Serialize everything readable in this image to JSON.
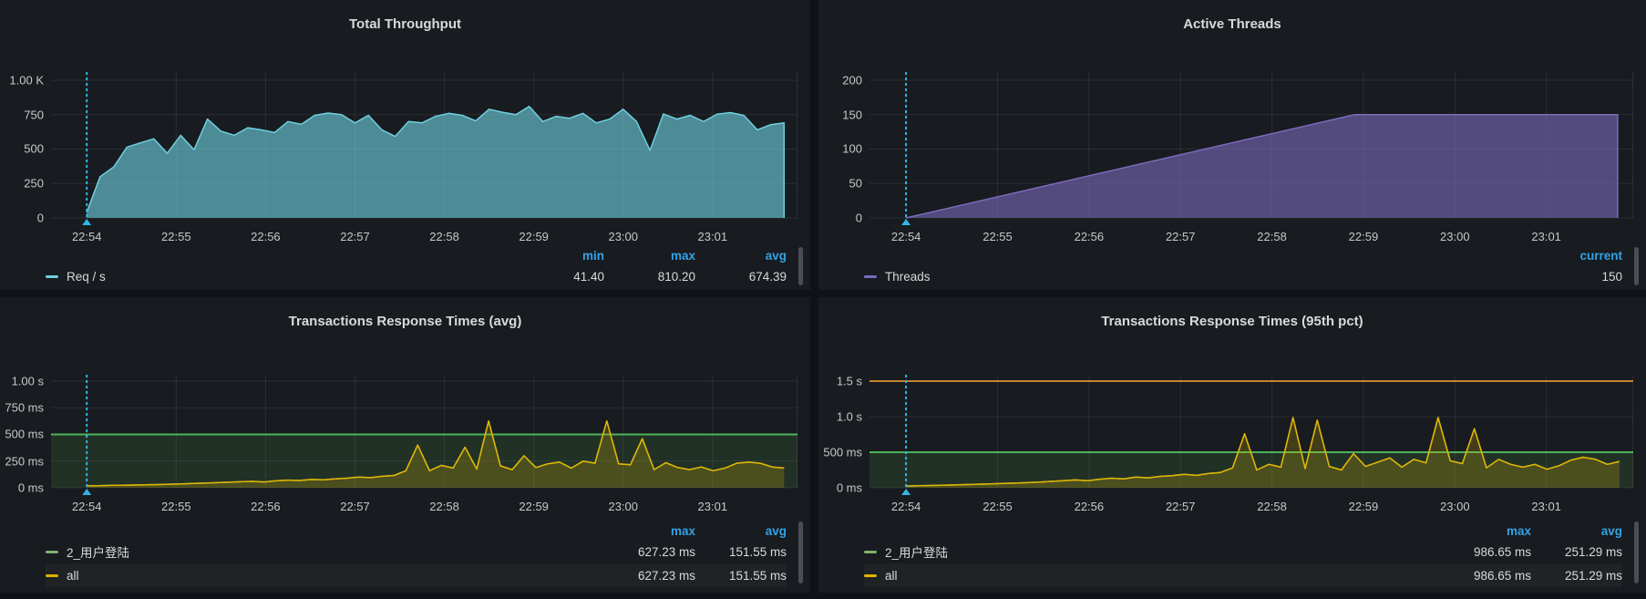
{
  "colors": {
    "page_bg": "#111217",
    "panel_bg": "#181b1f",
    "grid": "rgba(204,204,220,0.10)",
    "legend_header_blue": "#33a2e5",
    "teal": "#6ed0e0",
    "purple": "#7c6bbd",
    "green": "#7eb26d",
    "yellow": "#e0b400",
    "threshold_green": "#4eb358",
    "threshold_orange": "#c4822d",
    "annotation_cyan": "#33b5e5"
  },
  "panels": [
    {
      "title": "Total Throughput",
      "chart_index": 0,
      "legend": {
        "columns": [
          "min",
          "max",
          "avg"
        ],
        "rows": [
          {
            "label": "Req / s",
            "color": "#6ed0e0",
            "values": [
              "41.40",
              "810.20",
              "674.39"
            ]
          }
        ]
      }
    },
    {
      "title": "Active Threads",
      "chart_index": 1,
      "legend": {
        "columns": [
          "current"
        ],
        "rows": [
          {
            "label": "Threads",
            "color": "#7c6bbd",
            "values": [
              "150"
            ]
          }
        ]
      }
    },
    {
      "title": "Transactions Response Times (avg)",
      "chart_index": 2,
      "legend": {
        "columns": [
          "max",
          "avg"
        ],
        "rows": [
          {
            "label": "2_用户登陆",
            "color": "#7eb26d",
            "values": [
              "627.23 ms",
              "151.55 ms"
            ]
          },
          {
            "label": "all",
            "color": "#e0b400",
            "values": [
              "627.23 ms",
              "151.55 ms"
            ]
          }
        ]
      }
    },
    {
      "title": "Transactions Response Times (95th pct)",
      "chart_index": 3,
      "legend": {
        "columns": [
          "max",
          "avg"
        ],
        "rows": [
          {
            "label": "2_用户登陆",
            "color": "#7eb26d",
            "values": [
              "986.65 ms",
              "251.29 ms"
            ]
          },
          {
            "label": "all",
            "color": "#e0b400",
            "values": [
              "986.65 ms",
              "251.29 ms"
            ]
          }
        ]
      }
    }
  ],
  "chart_data": [
    {
      "type": "area",
      "title": "Total Throughput",
      "x_ticks": [
        "22:54",
        "22:55",
        "22:56",
        "22:57",
        "22:58",
        "22:59",
        "23:00",
        "23:01"
      ],
      "x_domain_minutes": [
        -0.4,
        7.95
      ],
      "ylim": [
        0,
        1060
      ],
      "y_ticks": [
        {
          "v": 0,
          "label": "0"
        },
        {
          "v": 250,
          "label": "250"
        },
        {
          "v": 500,
          "label": "500"
        },
        {
          "v": 750,
          "label": "750"
        },
        {
          "v": 1000,
          "label": "1.00 K"
        }
      ],
      "annotation": {
        "t": 0,
        "color": "#33b5e5"
      },
      "thresholds": [],
      "series": [
        {
          "name": "Req / s",
          "color": "#6ed0e0",
          "fill_opacity": 0.62,
          "close_stroke": true,
          "t_start": 0,
          "t_end": 7.8,
          "values": [
            41,
            300,
            370,
            515,
            545,
            575,
            470,
            600,
            495,
            718,
            630,
            600,
            655,
            640,
            620,
            700,
            680,
            745,
            762,
            750,
            690,
            745,
            640,
            592,
            700,
            690,
            738,
            760,
            745,
            705,
            790,
            768,
            750,
            810,
            700,
            738,
            724,
            760,
            690,
            718,
            790,
            700,
            491,
            755,
            718,
            745,
            700,
            753,
            765,
            745,
            640,
            678,
            690
          ],
          "stats": {
            "min": 41.4,
            "max": 810.2,
            "avg": 674.39
          }
        }
      ]
    },
    {
      "type": "area",
      "title": "Active Threads",
      "x_ticks": [
        "22:54",
        "22:55",
        "22:56",
        "22:57",
        "22:58",
        "22:59",
        "23:00",
        "23:01"
      ],
      "x_domain_minutes": [
        -0.4,
        7.95
      ],
      "ylim": [
        0,
        212
      ],
      "y_ticks": [
        {
          "v": 0,
          "label": "0"
        },
        {
          "v": 50,
          "label": "50"
        },
        {
          "v": 100,
          "label": "100"
        },
        {
          "v": 150,
          "label": "150"
        },
        {
          "v": 200,
          "label": "200"
        }
      ],
      "annotation": {
        "t": 0,
        "color": "#33b5e5"
      },
      "thresholds": [],
      "series": [
        {
          "name": "Threads",
          "color": "#7c6bbd",
          "fill_opacity": 0.6,
          "close_stroke": true,
          "points": [
            [
              0,
              0
            ],
            [
              4.9,
              150
            ],
            [
              7.78,
              150
            ]
          ],
          "stats": {
            "current": 150
          }
        }
      ]
    },
    {
      "type": "line",
      "title": "Transactions Response Times (avg)",
      "x_ticks": [
        "22:54",
        "22:55",
        "22:56",
        "22:57",
        "22:58",
        "22:59",
        "23:00",
        "23:01"
      ],
      "x_domain_minutes": [
        -0.4,
        7.95
      ],
      "ylim": [
        0,
        1060
      ],
      "y_ticks": [
        {
          "v": 0,
          "label": "0 ms"
        },
        {
          "v": 250,
          "label": "250 ms"
        },
        {
          "v": 500,
          "label": "500 ms"
        },
        {
          "v": 750,
          "label": "750 ms"
        },
        {
          "v": 1000,
          "label": "1.00 s"
        }
      ],
      "annotation": {
        "t": 0,
        "color": "#33b5e5"
      },
      "thresholds": [
        {
          "value": 500,
          "color": "#4eb358",
          "region_fill": "rgba(86,166,75,0.16)"
        }
      ],
      "series": [
        {
          "name": "2_用户登陆",
          "color": "#7eb26d",
          "fill_opacity": 0,
          "close_stroke": false,
          "t_start": 0,
          "t_end": 7.8,
          "values": [
            18,
            20,
            22,
            24,
            26,
            28,
            30,
            33,
            36,
            40,
            44,
            48,
            52,
            56,
            60,
            55,
            65,
            72,
            68,
            78,
            74,
            84,
            90,
            100,
            95,
            108,
            115,
            160,
            400,
            160,
            210,
            185,
            380,
            175,
            627,
            205,
            170,
            300,
            190,
            225,
            240,
            185,
            250,
            230,
            627,
            225,
            215,
            460,
            170,
            235,
            190,
            170,
            195,
            160,
            185,
            230,
            240,
            230,
            195,
            185
          ],
          "stats": {
            "max": 627.23,
            "avg": 151.55
          }
        },
        {
          "name": "all",
          "color": "#e0b400",
          "fill_opacity": 0.22,
          "close_stroke": false,
          "t_start": 0,
          "t_end": 7.8,
          "values": [
            18,
            20,
            22,
            24,
            26,
            28,
            30,
            33,
            36,
            40,
            44,
            48,
            52,
            56,
            60,
            55,
            65,
            72,
            68,
            78,
            74,
            84,
            90,
            100,
            95,
            108,
            115,
            160,
            400,
            160,
            210,
            185,
            380,
            175,
            627,
            205,
            170,
            300,
            190,
            225,
            240,
            185,
            250,
            230,
            627,
            225,
            215,
            460,
            170,
            235,
            190,
            170,
            195,
            160,
            185,
            230,
            240,
            230,
            195,
            185
          ],
          "stats": {
            "max": 627.23,
            "avg": 151.55
          }
        }
      ]
    },
    {
      "type": "line",
      "title": "Transactions Response Times (95th pct)",
      "x_ticks": [
        "22:54",
        "22:55",
        "22:56",
        "22:57",
        "22:58",
        "22:59",
        "23:00",
        "23:01"
      ],
      "x_domain_minutes": [
        -0.4,
        7.95
      ],
      "ylim": [
        0,
        1590
      ],
      "y_ticks": [
        {
          "v": 0,
          "label": "0 ms"
        },
        {
          "v": 500,
          "label": "500 ms"
        },
        {
          "v": 1000,
          "label": "1.0 s"
        },
        {
          "v": 1500,
          "label": "1.5 s"
        }
      ],
      "annotation": {
        "t": 0,
        "color": "#33b5e5"
      },
      "thresholds": [
        {
          "value": 500,
          "color": "#4eb358",
          "region_fill": "rgba(86,166,75,0.16)"
        },
        {
          "value": 1500,
          "color": "#c4822d"
        }
      ],
      "series": [
        {
          "name": "2_用户登陆",
          "color": "#7eb26d",
          "fill_opacity": 0,
          "close_stroke": false,
          "t_start": 0,
          "t_end": 7.8,
          "values": [
            25,
            28,
            32,
            36,
            40,
            45,
            50,
            55,
            60,
            66,
            72,
            80,
            90,
            100,
            110,
            100,
            120,
            135,
            125,
            150,
            140,
            160,
            170,
            190,
            175,
            200,
            215,
            280,
            760,
            250,
            330,
            290,
            987,
            270,
            950,
            300,
            250,
            480,
            300,
            360,
            420,
            290,
            400,
            350,
            987,
            380,
            340,
            830,
            280,
            400,
            330,
            290,
            330,
            260,
            310,
            390,
            430,
            400,
            330,
            370
          ],
          "stats": {
            "max": 986.65,
            "avg": 251.29
          }
        },
        {
          "name": "all",
          "color": "#e0b400",
          "fill_opacity": 0.22,
          "close_stroke": false,
          "t_start": 0,
          "t_end": 7.8,
          "values": [
            25,
            28,
            32,
            36,
            40,
            45,
            50,
            55,
            60,
            66,
            72,
            80,
            90,
            100,
            110,
            100,
            120,
            135,
            125,
            150,
            140,
            160,
            170,
            190,
            175,
            200,
            215,
            280,
            760,
            250,
            330,
            290,
            987,
            270,
            950,
            300,
            250,
            480,
            300,
            360,
            420,
            290,
            400,
            350,
            987,
            380,
            340,
            830,
            280,
            400,
            330,
            290,
            330,
            260,
            310,
            390,
            430,
            400,
            330,
            370
          ],
          "stats": {
            "max": 986.65,
            "avg": 251.29
          }
        }
      ]
    }
  ]
}
